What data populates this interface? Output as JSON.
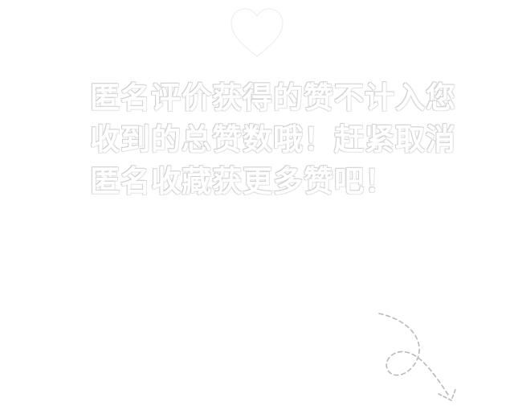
{
  "notice": {
    "lines": [
      "匿名评价获得的赞不计入您",
      "收到的总赞数哦！赶紧取消",
      "匿名收藏获更多赞吧！"
    ]
  },
  "icons": {
    "heart": "heart-icon",
    "arrow": "curved-arrow-icon"
  },
  "colors": {
    "background": "#ffffff",
    "emboss_shadow": "#d6d6d6"
  }
}
